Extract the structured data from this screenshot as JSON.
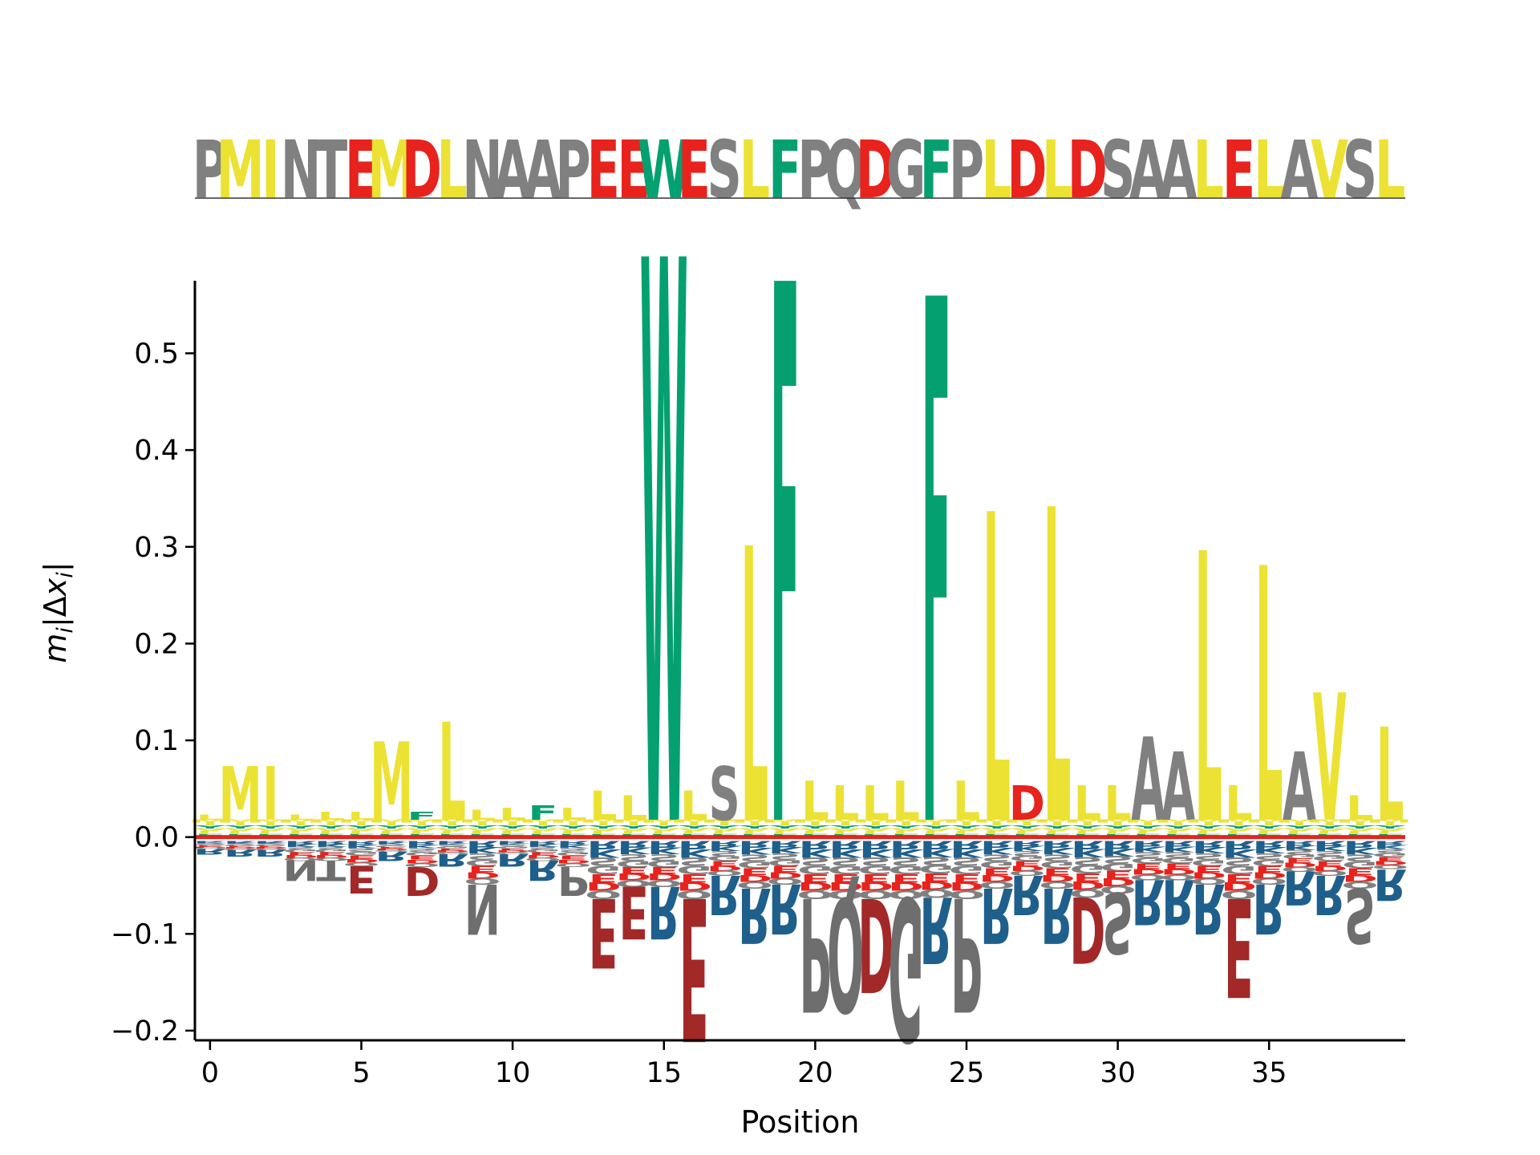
{
  "colors": {
    "hydrophobic": "#ebe234",
    "aromatic": "#05a070",
    "acidic": "#e8221c",
    "neutral": "#808080",
    "basic": "#1f5f8b",
    "acidic_dark": "#a32828",
    "neutral_dark": "#6e6e6e",
    "zero_line": "#e8221c"
  },
  "sequence": {
    "letters": [
      "P",
      "M",
      "I",
      "N",
      "T",
      "E",
      "M",
      "D",
      "L",
      "N",
      "A",
      "A",
      "P",
      "E",
      "E",
      "W",
      "E",
      "S",
      "L",
      "F",
      "P",
      "Q",
      "D",
      "G",
      "F",
      "P",
      "L",
      "D",
      "L",
      "D",
      "S",
      "A",
      "A",
      "L",
      "E",
      "L",
      "A",
      "V",
      "S",
      "L"
    ]
  },
  "chart_data": {
    "type": "sequence-logo",
    "xlabel": "Position",
    "ylabel": "m_i|Δx_i|",
    "xlim": [
      -0.5,
      39.5
    ],
    "ylim": [
      -0.21,
      0.575
    ],
    "xticks": [
      0,
      5,
      10,
      15,
      20,
      25,
      30,
      35
    ],
    "yticks": [
      -0.2,
      -0.1,
      0.0,
      0.1,
      0.2,
      0.3,
      0.4,
      0.5
    ],
    "ytick_labels": [
      "−0.2",
      "−0.1",
      "0.0",
      "0.1",
      "0.2",
      "0.3",
      "0.4",
      "0.5"
    ],
    "positions": [
      0,
      1,
      2,
      3,
      4,
      5,
      6,
      7,
      8,
      9,
      10,
      11,
      12,
      13,
      14,
      15,
      16,
      17,
      18,
      19,
      20,
      21,
      22,
      23,
      24,
      25,
      26,
      27,
      28,
      29,
      30,
      31,
      32,
      33,
      34,
      35,
      36,
      37,
      38,
      39
    ],
    "dominant_positive": [
      {
        "pos": 0,
        "letter": "L",
        "value": 0.005
      },
      {
        "pos": 1,
        "letter": "M",
        "value": 0.055
      },
      {
        "pos": 2,
        "letter": "I",
        "value": 0.055
      },
      {
        "pos": 3,
        "letter": "L",
        "value": 0.005
      },
      {
        "pos": 4,
        "letter": "L",
        "value": 0.008
      },
      {
        "pos": 5,
        "letter": "L",
        "value": 0.008
      },
      {
        "pos": 6,
        "letter": "M",
        "value": 0.08
      },
      {
        "pos": 7,
        "letter": "F",
        "value": 0.008
      },
      {
        "pos": 8,
        "letter": "L",
        "value": 0.1
      },
      {
        "pos": 9,
        "letter": "L",
        "value": 0.01
      },
      {
        "pos": 10,
        "letter": "L",
        "value": 0.012
      },
      {
        "pos": 11,
        "letter": "F",
        "value": 0.015
      },
      {
        "pos": 12,
        "letter": "L",
        "value": 0.012
      },
      {
        "pos": 13,
        "letter": "L",
        "value": 0.03
      },
      {
        "pos": 14,
        "letter": "L",
        "value": 0.025
      },
      {
        "pos": 15,
        "letter": "W",
        "value": 0.575
      },
      {
        "pos": 16,
        "letter": "L",
        "value": 0.03
      },
      {
        "pos": 17,
        "letter": "S",
        "value": 0.055
      },
      {
        "pos": 18,
        "letter": "L",
        "value": 0.28
      },
      {
        "pos": 19,
        "letter": "F",
        "value": 0.55
      },
      {
        "pos": 20,
        "letter": "L",
        "value": 0.04
      },
      {
        "pos": 21,
        "letter": "L",
        "value": 0.035
      },
      {
        "pos": 22,
        "letter": "L",
        "value": 0.035
      },
      {
        "pos": 23,
        "letter": "L",
        "value": 0.04
      },
      {
        "pos": 24,
        "letter": "F",
        "value": 0.535
      },
      {
        "pos": 25,
        "letter": "L",
        "value": 0.04
      },
      {
        "pos": 26,
        "letter": "L",
        "value": 0.315
      },
      {
        "pos": 27,
        "letter": "D",
        "value": 0.035
      },
      {
        "pos": 28,
        "letter": "L",
        "value": 0.32
      },
      {
        "pos": 29,
        "letter": "L",
        "value": 0.035
      },
      {
        "pos": 30,
        "letter": "L",
        "value": 0.035
      },
      {
        "pos": 31,
        "letter": "A",
        "value": 0.085
      },
      {
        "pos": 32,
        "letter": "A",
        "value": 0.07
      },
      {
        "pos": 33,
        "letter": "L",
        "value": 0.275
      },
      {
        "pos": 34,
        "letter": "L",
        "value": 0.035
      },
      {
        "pos": 35,
        "letter": "L",
        "value": 0.26
      },
      {
        "pos": 36,
        "letter": "A",
        "value": 0.07
      },
      {
        "pos": 37,
        "letter": "V",
        "value": 0.13
      },
      {
        "pos": 38,
        "letter": "L",
        "value": 0.025
      },
      {
        "pos": 39,
        "letter": "L",
        "value": 0.095
      }
    ],
    "dominant_negative": [
      {
        "pos": 0,
        "letter": "R",
        "value": -0.018
      },
      {
        "pos": 1,
        "letter": "R",
        "value": -0.02
      },
      {
        "pos": 2,
        "letter": "R",
        "value": -0.02
      },
      {
        "pos": 3,
        "letter": "N",
        "value": -0.045
      },
      {
        "pos": 4,
        "letter": "T",
        "value": -0.045
      },
      {
        "pos": 5,
        "letter": "E",
        "value": -0.058
      },
      {
        "pos": 6,
        "letter": "R",
        "value": -0.025
      },
      {
        "pos": 7,
        "letter": "D",
        "value": -0.06
      },
      {
        "pos": 8,
        "letter": "R",
        "value": -0.03
      },
      {
        "pos": 9,
        "letter": "N",
        "value": -0.1
      },
      {
        "pos": 10,
        "letter": "R",
        "value": -0.03
      },
      {
        "pos": 11,
        "letter": "R",
        "value": -0.045
      },
      {
        "pos": 12,
        "letter": "P",
        "value": -0.06
      },
      {
        "pos": 13,
        "letter": "E",
        "value": -0.135
      },
      {
        "pos": 14,
        "letter": "E",
        "value": -0.105
      },
      {
        "pos": 15,
        "letter": "R",
        "value": -0.105
      },
      {
        "pos": 16,
        "letter": "E",
        "value": -0.21
      },
      {
        "pos": 17,
        "letter": "R",
        "value": -0.08
      },
      {
        "pos": 18,
        "letter": "R",
        "value": -0.11
      },
      {
        "pos": 19,
        "letter": "R",
        "value": -0.1
      },
      {
        "pos": 20,
        "letter": "P",
        "value": -0.18
      },
      {
        "pos": 21,
        "letter": "Q",
        "value": -0.18
      },
      {
        "pos": 22,
        "letter": "D",
        "value": -0.16
      },
      {
        "pos": 23,
        "letter": "G",
        "value": -0.21
      },
      {
        "pos": 24,
        "letter": "R",
        "value": -0.13
      },
      {
        "pos": 25,
        "letter": "P",
        "value": -0.18
      },
      {
        "pos": 26,
        "letter": "R",
        "value": -0.11
      },
      {
        "pos": 27,
        "letter": "R",
        "value": -0.08
      },
      {
        "pos": 28,
        "letter": "R",
        "value": -0.11
      },
      {
        "pos": 29,
        "letter": "D",
        "value": -0.13
      },
      {
        "pos": 30,
        "letter": "S",
        "value": -0.12
      },
      {
        "pos": 31,
        "letter": "R",
        "value": -0.09
      },
      {
        "pos": 32,
        "letter": "R",
        "value": -0.09
      },
      {
        "pos": 33,
        "letter": "R",
        "value": -0.1
      },
      {
        "pos": 34,
        "letter": "E",
        "value": -0.165
      },
      {
        "pos": 35,
        "letter": "R",
        "value": -0.1
      },
      {
        "pos": 36,
        "letter": "R",
        "value": -0.07
      },
      {
        "pos": 37,
        "letter": "R",
        "value": -0.08
      },
      {
        "pos": 38,
        "letter": "S",
        "value": -0.11
      },
      {
        "pos": 39,
        "letter": "R",
        "value": -0.065
      }
    ]
  }
}
